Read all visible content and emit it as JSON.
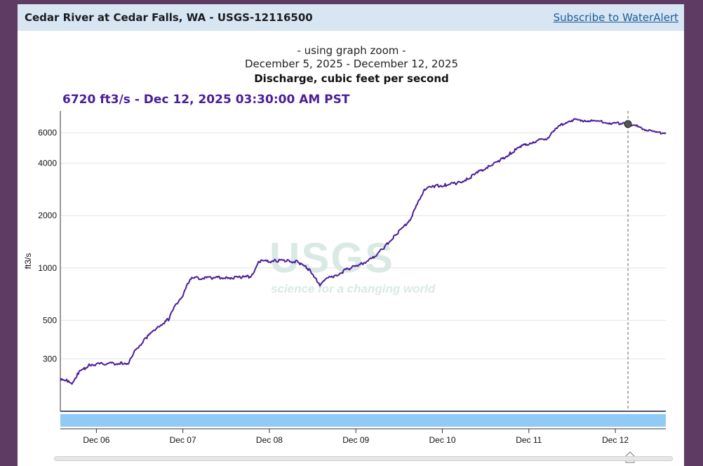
{
  "header": {
    "site_title": "Cedar River at Cedar Falls, WA - USGS-12116500",
    "subscribe_label": "Subscribe to WaterAlert"
  },
  "graph": {
    "zoom_note": "- using graph zoom -",
    "date_range": "December 5, 2025 - December 12, 2025",
    "parameter": "Discharge, cubic feet per second",
    "readout": "6720 ft3/s - Dec 12, 2025 03:30:00 AM PST"
  },
  "watermark": {
    "logo": "USGS",
    "tagline": "science for a changing world"
  },
  "colors": {
    "line": "#4b1e99",
    "brush": "#8fcbf5",
    "header_bg": "#d8e6f3",
    "frame": "#5e3b63",
    "link": "#1c5c99"
  },
  "chart_data": {
    "type": "line",
    "title": "Discharge, cubic feet per second",
    "ylabel": "ft3/s",
    "xlabel": "",
    "yscale": "log",
    "xlim": [
      "2025-12-05T14:00",
      "2025-12-12T14:00"
    ],
    "ylim": [
      150,
      8000
    ],
    "y_ticks": [
      300,
      500,
      1000,
      2000,
      4000,
      6000
    ],
    "x_ticks": [
      {
        "label": "Dec 06",
        "date": "2025-12-06T00:00"
      },
      {
        "label": "Dec 07",
        "date": "2025-12-07T00:00"
      },
      {
        "label": "Dec 08",
        "date": "2025-12-08T00:00"
      },
      {
        "label": "Dec 09",
        "date": "2025-12-09T00:00"
      },
      {
        "label": "Dec 10",
        "date": "2025-12-10T00:00"
      },
      {
        "label": "Dec 11",
        "date": "2025-12-11T00:00"
      },
      {
        "label": "Dec 12",
        "date": "2025-12-12T00:00"
      }
    ],
    "grid": true,
    "legend": "none",
    "cursor": {
      "date": "2025-12-12T03:30",
      "value": 6720
    },
    "series": [
      {
        "x": [
          "2025-12-05T14:00",
          "2025-12-05T16:00",
          "2025-12-05T17:00",
          "2025-12-05T19:00",
          "2025-12-05T22:00",
          "2025-12-06T03:00",
          "2025-12-06T07:00",
          "2025-12-06T09:00",
          "2025-12-06T11:00",
          "2025-12-06T14:00",
          "2025-12-06T17:00",
          "2025-12-06T20:00",
          "2025-12-06T22:00",
          "2025-12-07T00:00",
          "2025-12-07T01:00",
          "2025-12-07T02:00",
          "2025-12-07T04:00",
          "2025-12-07T08:00",
          "2025-12-07T12:00",
          "2025-12-07T16:00",
          "2025-12-07T19:00",
          "2025-12-07T21:00",
          "2025-12-07T23:00",
          "2025-12-08T02:00",
          "2025-12-08T05:00",
          "2025-12-08T08:00",
          "2025-12-08T11:00",
          "2025-12-08T13:00",
          "2025-12-08T14:00",
          "2025-12-08T15:00",
          "2025-12-08T18:00",
          "2025-12-08T22:00",
          "2025-12-09T01:00",
          "2025-12-09T05:00",
          "2025-12-09T08:00",
          "2025-12-09T11:00",
          "2025-12-09T13:00",
          "2025-12-09T15:00",
          "2025-12-09T17:00",
          "2025-12-09T19:00",
          "2025-12-09T22:00",
          "2025-12-10T01:00",
          "2025-12-10T04:00",
          "2025-12-10T07:00",
          "2025-12-10T10:00",
          "2025-12-10T13:00",
          "2025-12-10T16:00",
          "2025-12-10T19:00",
          "2025-12-10T22:00",
          "2025-12-11T01:00",
          "2025-12-11T03:00",
          "2025-12-11T05:00",
          "2025-12-11T08:00",
          "2025-12-11T11:00",
          "2025-12-11T13:00",
          "2025-12-11T16:00",
          "2025-12-11T19:00",
          "2025-12-11T22:00",
          "2025-12-12T02:00",
          "2025-12-12T03:30",
          "2025-12-12T06:00",
          "2025-12-12T08:00",
          "2025-12-12T11:00",
          "2025-12-12T14:00"
        ],
        "values": [
          232,
          225,
          214,
          248,
          278,
          282,
          283,
          285,
          340,
          400,
          460,
          505,
          615,
          700,
          775,
          870,
          875,
          878,
          880,
          882,
          895,
          1090,
          1090,
          1100,
          1100,
          1080,
          980,
          870,
          780,
          855,
          900,
          990,
          1040,
          1150,
          1320,
          1550,
          1700,
          1900,
          2300,
          2850,
          2950,
          3000,
          3060,
          3250,
          3550,
          3850,
          4150,
          4600,
          5000,
          5300,
          5400,
          5550,
          6400,
          7050,
          7100,
          7050,
          6950,
          6850,
          6750,
          6720,
          6500,
          6300,
          6000,
          6000
        ]
      }
    ]
  }
}
